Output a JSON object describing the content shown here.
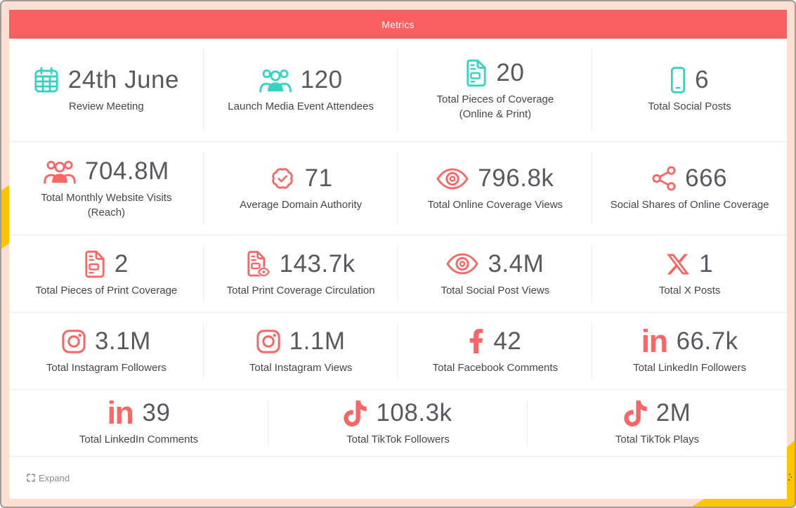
{
  "window": {
    "title": "Metrics"
  },
  "colors": {
    "pink": "#fcdfd2",
    "header_bg": "#f95f5f",
    "teal": "#36d3c3",
    "red": "#fa6565",
    "gold": "#fdc500"
  },
  "footer": {
    "expand_label": "Expand"
  },
  "metrics": [
    {
      "icon": "calendar-icon",
      "color": "teal",
      "value": "24th June",
      "label": "Review Meeting"
    },
    {
      "icon": "users-icon",
      "color": "teal",
      "value": "120",
      "label": "Launch Media Event Attendees"
    },
    {
      "icon": "file-lines-icon",
      "color": "teal",
      "value": "20",
      "label": "Total Pieces of Coverage\n(Online & Print)"
    },
    {
      "icon": "mobile-icon",
      "color": "teal",
      "value": "6",
      "label": "Total Social Posts"
    },
    {
      "icon": "users-icon",
      "color": "red",
      "value": "704.8M",
      "label": "Total Monthly Website Visits\n(Reach)"
    },
    {
      "icon": "badge-check-icon",
      "color": "red",
      "value": "71",
      "label": "Average Domain Authority"
    },
    {
      "icon": "eye-icon",
      "color": "red",
      "value": "796.8k",
      "label": "Total Online Coverage Views"
    },
    {
      "icon": "share-nodes-icon",
      "color": "red",
      "value": "666",
      "label": "Social Shares of Online Coverage"
    },
    {
      "icon": "file-lines-icon",
      "color": "red",
      "value": "2",
      "label": "Total Pieces of Print Coverage"
    },
    {
      "icon": "file-eye-icon",
      "color": "red",
      "value": "143.7k",
      "label": "Total Print Coverage Circulation"
    },
    {
      "icon": "eye-icon",
      "color": "red",
      "value": "3.4M",
      "label": "Total Social Post Views"
    },
    {
      "icon": "x-logo-icon",
      "color": "red",
      "value": "1",
      "label": "Total X Posts"
    },
    {
      "icon": "instagram-icon",
      "color": "red",
      "value": "3.1M",
      "label": "Total Instagram Followers"
    },
    {
      "icon": "instagram-icon",
      "color": "red",
      "value": "1.1M",
      "label": "Total Instagram Views"
    },
    {
      "icon": "facebook-icon",
      "color": "red",
      "value": "42",
      "label": "Total Facebook Comments"
    },
    {
      "icon": "linkedin-icon",
      "color": "red",
      "value": "66.7k",
      "label": "Total LinkedIn Followers"
    },
    {
      "icon": "linkedin-icon",
      "color": "red",
      "value": "39",
      "label": "Total LinkedIn Comments"
    },
    {
      "icon": "tiktok-icon",
      "color": "red",
      "value": "108.3k",
      "label": "Total TikTok Followers"
    },
    {
      "icon": "tiktok-icon",
      "color": "red",
      "value": "2M",
      "label": "Total TikTok Plays"
    }
  ]
}
